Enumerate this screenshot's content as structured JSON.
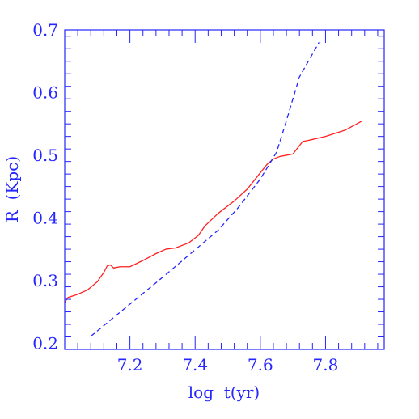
{
  "chart_data": {
    "type": "line",
    "xlabel": "log  t(yr)",
    "ylabel": "R  (Kpc)",
    "xlim": [
      7.0,
      7.98
    ],
    "ylim": [
      0.19,
      0.7
    ],
    "x_ticks": [
      "7.2",
      "7.4",
      "7.6",
      "7.8"
    ],
    "y_ticks": [
      "0.2",
      "0.3",
      "0.4",
      "0.5",
      "0.6",
      "0.7"
    ],
    "grid": false,
    "legend": "none",
    "colors": {
      "axes": "#2626ff",
      "solid": "#ff2020",
      "dashed": "#2626ff"
    },
    "series": [
      {
        "style": "solid",
        "points": [
          [
            7.0,
            0.265
          ],
          [
            7.01,
            0.273
          ],
          [
            7.04,
            0.278
          ],
          [
            7.07,
            0.285
          ],
          [
            7.1,
            0.298
          ],
          [
            7.12,
            0.313
          ],
          [
            7.13,
            0.323
          ],
          [
            7.14,
            0.325
          ],
          [
            7.15,
            0.32
          ],
          [
            7.17,
            0.322
          ],
          [
            7.2,
            0.322
          ],
          [
            7.24,
            0.332
          ],
          [
            7.28,
            0.343
          ],
          [
            7.31,
            0.35
          ],
          [
            7.34,
            0.352
          ],
          [
            7.38,
            0.36
          ],
          [
            7.41,
            0.372
          ],
          [
            7.43,
            0.387
          ],
          [
            7.47,
            0.407
          ],
          [
            7.52,
            0.427
          ],
          [
            7.56,
            0.446
          ],
          [
            7.6,
            0.472
          ],
          [
            7.62,
            0.485
          ],
          [
            7.64,
            0.494
          ],
          [
            7.66,
            0.498
          ],
          [
            7.7,
            0.502
          ],
          [
            7.73,
            0.522
          ],
          [
            7.75,
            0.524
          ],
          [
            7.8,
            0.53
          ],
          [
            7.86,
            0.54
          ],
          [
            7.91,
            0.554
          ]
        ]
      },
      {
        "style": "dashed",
        "points": [
          [
            7.08,
            0.211
          ],
          [
            7.3,
            0.305
          ],
          [
            7.47,
            0.38
          ],
          [
            7.53,
            0.415
          ],
          [
            7.6,
            0.462
          ],
          [
            7.65,
            0.505
          ],
          [
            7.68,
            0.555
          ],
          [
            7.72,
            0.625
          ],
          [
            7.78,
            0.68
          ]
        ]
      }
    ]
  }
}
